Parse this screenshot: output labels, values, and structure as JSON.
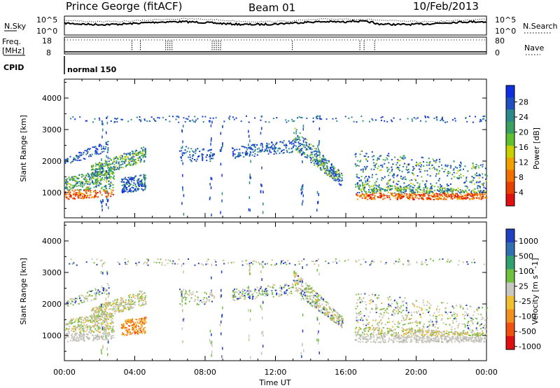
{
  "header": {
    "station": "Prince George (fitACF)",
    "beam": "Beam 01",
    "date": "10/Feb/2013"
  },
  "nsky_panel": {
    "left_label": "N.Sky",
    "left_ticks": [
      "10^5",
      "10^0"
    ],
    "right_ticks": [
      "10^5",
      "10^0"
    ],
    "right_label": "N.Search"
  },
  "freq_panel": {
    "left_label_1": "Freq.",
    "left_label_2": "[MHz]",
    "left_ticks": [
      "18",
      "8"
    ],
    "right_ticks": [
      "80",
      "0"
    ],
    "right_label": "Nave"
  },
  "cpid": {
    "label": "CPID",
    "mode": "normal 150"
  },
  "chart_data": [
    {
      "type": "heatmap",
      "parameter": "Power",
      "ylabel": "Slant Range [km]",
      "xlabel": "Time UT",
      "yticks": [
        1000,
        2000,
        3000,
        4000
      ],
      "ylim": [
        200,
        4600
      ],
      "xticks": [
        "00:00",
        "04:00",
        "08:00",
        "12:00",
        "16:00",
        "20:00",
        "00:00"
      ],
      "xlim_hours": [
        0,
        24
      ],
      "colorbar": {
        "label": "Power [dB]",
        "ticks": [
          "4",
          "8",
          "12",
          "16",
          "20",
          "24",
          "28"
        ],
        "colors": [
          "#1030e0",
          "#2050c0",
          "#2a8a8a",
          "#3aa060",
          "#60c030",
          "#c8d000",
          "#f0a000",
          "#f07000",
          "#e84000",
          "#e01010"
        ]
      }
    },
    {
      "type": "heatmap",
      "parameter": "Velocity",
      "ylabel": "Slant Range [km]",
      "xlabel": "Time UT",
      "yticks": [
        1000,
        2000,
        3000,
        4000
      ],
      "ylim": [
        200,
        4600
      ],
      "xticks": [
        "00:00",
        "04:00",
        "08:00",
        "12:00",
        "16:00",
        "20:00",
        "00:00"
      ],
      "xlim_hours": [
        0,
        24
      ],
      "colorbar": {
        "label": "Velocity [m s^-1]",
        "ticks": [
          "1000",
          "500",
          "100",
          "25",
          "-25",
          "-100",
          "-500",
          "-1000"
        ],
        "colors": [
          "#2040c0",
          "#3070b0",
          "#30a070",
          "#70c040",
          "#c8c8c0",
          "#f0c030",
          "#f09020",
          "#f05010",
          "#e01010"
        ]
      }
    }
  ],
  "footer": {
    "xlabel": "Time UT"
  }
}
